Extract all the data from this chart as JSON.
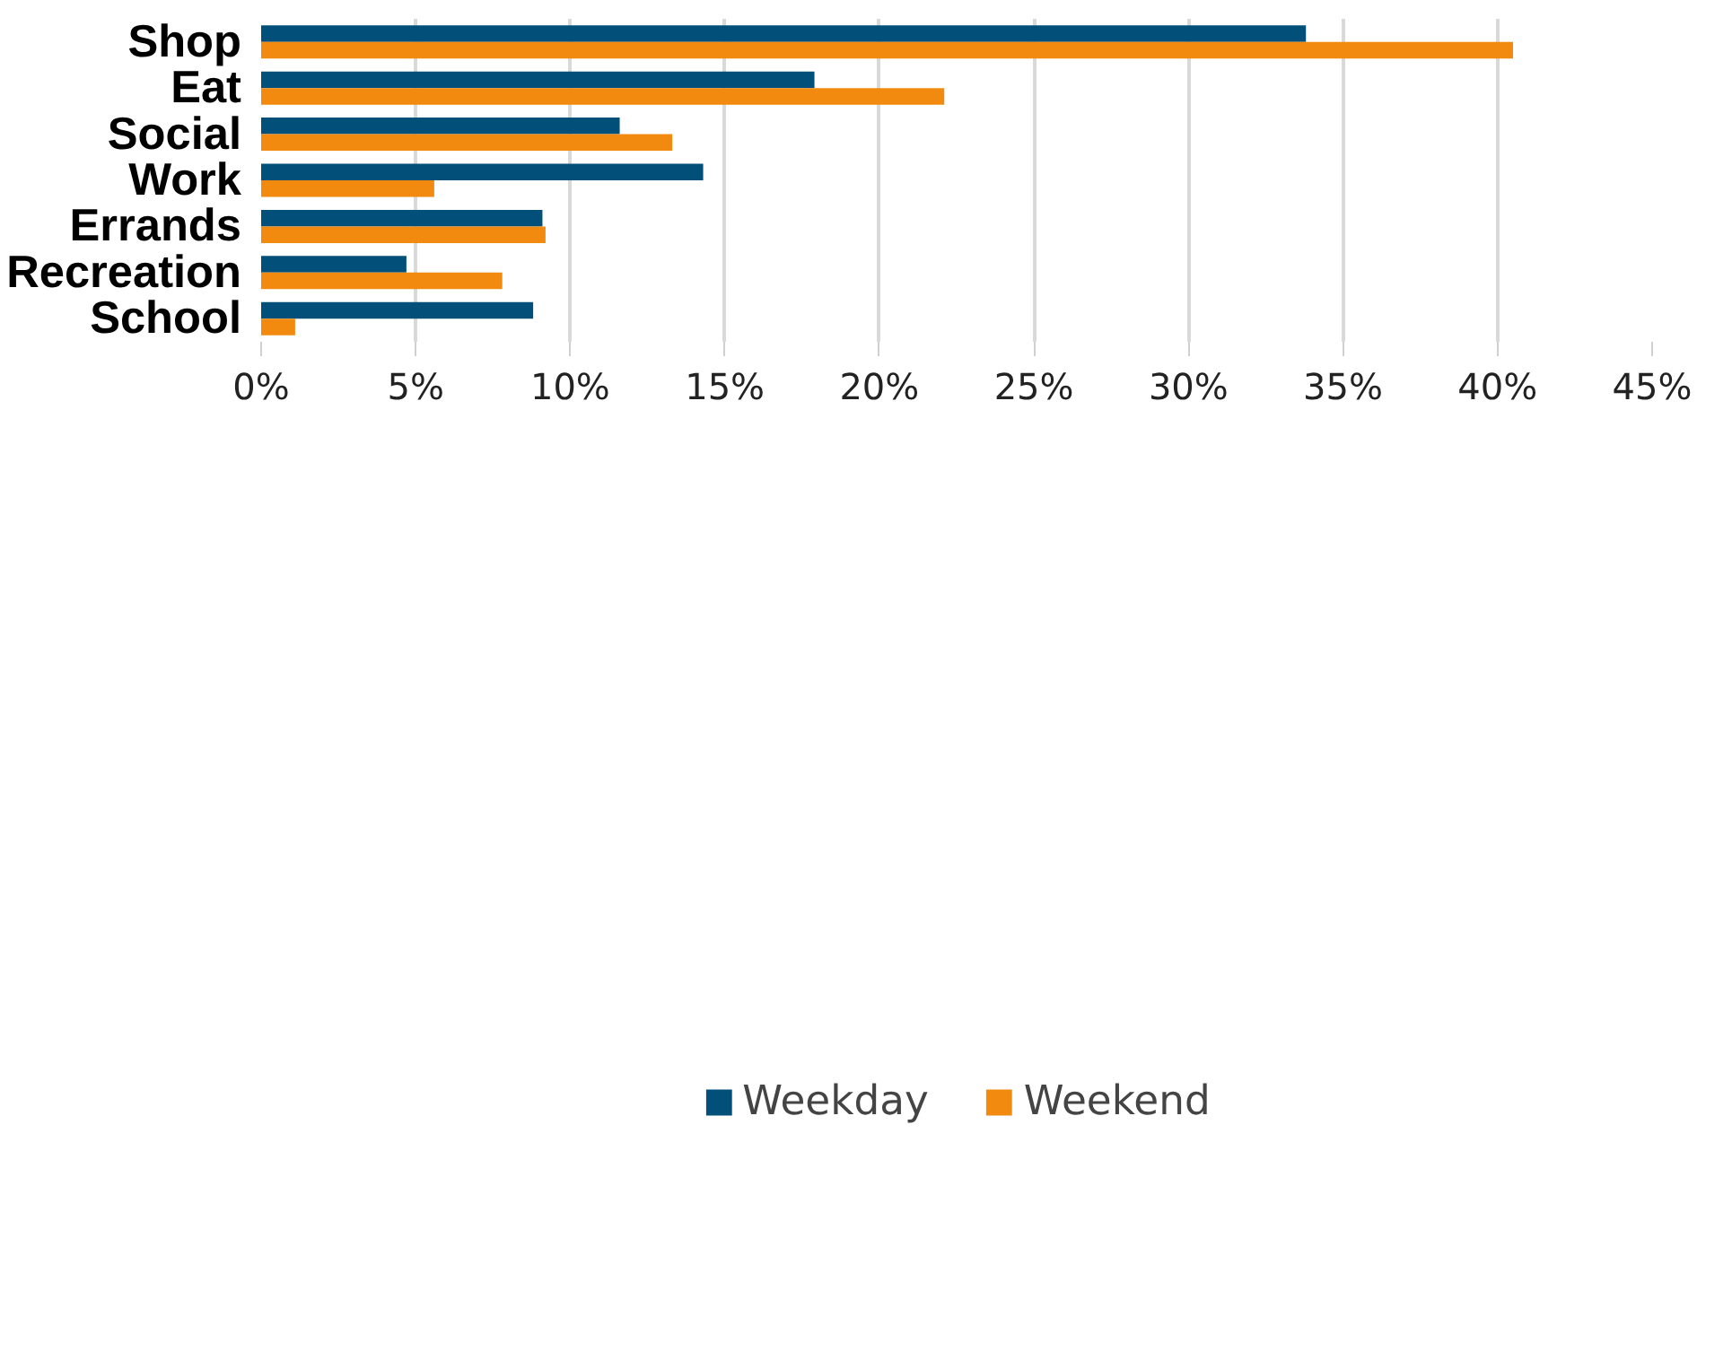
{
  "chart_data": {
    "type": "bar",
    "orientation": "horizontal",
    "categories": [
      "Shop",
      "Eat",
      "Social",
      "Work",
      "Errands",
      "Recreation",
      "School"
    ],
    "series": [
      {
        "name": "Weekday",
        "color": "#02507a",
        "values": [
          33.8,
          17.9,
          11.6,
          14.3,
          9.1,
          4.7,
          8.8
        ]
      },
      {
        "name": "Weekend",
        "color": "#f28a10",
        "values": [
          40.5,
          22.1,
          13.3,
          5.6,
          9.2,
          7.8,
          1.1
        ]
      }
    ],
    "xlim": [
      0,
      45
    ],
    "xticks": [
      {
        "value": 0,
        "label": "0%"
      },
      {
        "value": 5,
        "label": "5%"
      },
      {
        "value": 10,
        "label": "10%"
      },
      {
        "value": 15,
        "label": "15%"
      },
      {
        "value": 20,
        "label": "20%"
      },
      {
        "value": 25,
        "label": "25%"
      },
      {
        "value": 30,
        "label": "30%"
      },
      {
        "value": 35,
        "label": "35%"
      },
      {
        "value": 40,
        "label": "40%"
      },
      {
        "value": 45,
        "label": "45%"
      }
    ],
    "grid": "x",
    "legend": "bottom"
  }
}
